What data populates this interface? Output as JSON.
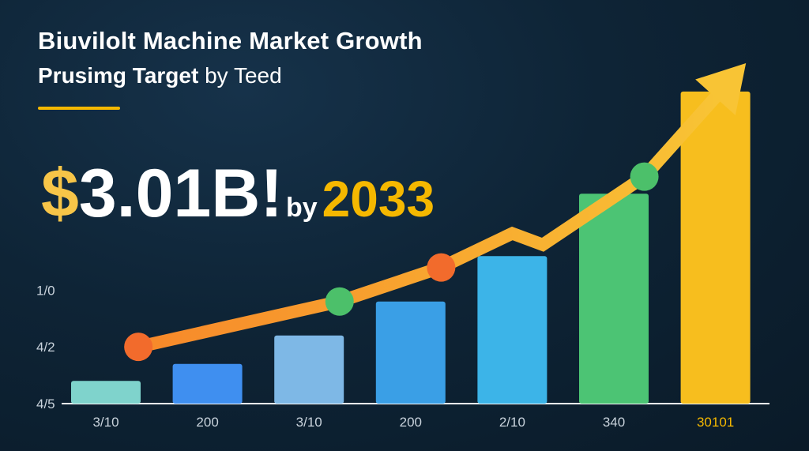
{
  "header": {
    "title": "Biuvilolt Machine Market Growth",
    "subtitle_bold": "Prusimg Target",
    "subtitle_rest": " by Teed"
  },
  "headline": {
    "dollar": "$",
    "amount": "3.01B!",
    "by": "by",
    "year": "2033"
  },
  "colors": {
    "background": "#0e2436",
    "accent": "#f5b800",
    "trend_line": "#f99d2a",
    "marker_orange": "#f26b2c",
    "marker_green": "#4cc06a"
  },
  "chart_data": {
    "type": "bar",
    "categories": [
      "3/10",
      "200",
      "3/10",
      "200",
      "2/10",
      "340",
      "30101"
    ],
    "values": [
      4,
      7,
      12,
      18,
      26,
      37,
      55
    ],
    "bar_colors": [
      "#7fd3cc",
      "#3f8ff0",
      "#7eb8e6",
      "#3a9fe6",
      "#3cb4e8",
      "#4cc474",
      "#f7be1e"
    ],
    "y_ticks": [
      {
        "label": "4/5",
        "value": 0
      },
      {
        "label": "4/2",
        "value": 10
      },
      {
        "label": "1/0",
        "value": 20
      }
    ],
    "ylim": [
      0,
      60
    ],
    "trend": {
      "color": "#f99d2a",
      "points": [
        {
          "x": 0.32,
          "y": 10
        },
        {
          "x": 2.3,
          "y": 18
        },
        {
          "x": 3.3,
          "y": 24
        },
        {
          "x": 4.0,
          "y": 30
        },
        {
          "x": 4.3,
          "y": 28
        },
        {
          "x": 5.3,
          "y": 40
        },
        {
          "x": 6.3,
          "y": 60
        }
      ],
      "markers": [
        {
          "x": 0.32,
          "y": 10,
          "color": "#f26b2c"
        },
        {
          "x": 2.3,
          "y": 18,
          "color": "#4cc06a"
        },
        {
          "x": 3.3,
          "y": 24,
          "color": "#f26b2c"
        },
        {
          "x": 5.3,
          "y": 40,
          "color": "#4cc06a"
        }
      ],
      "arrowhead": true
    },
    "grid": false
  }
}
